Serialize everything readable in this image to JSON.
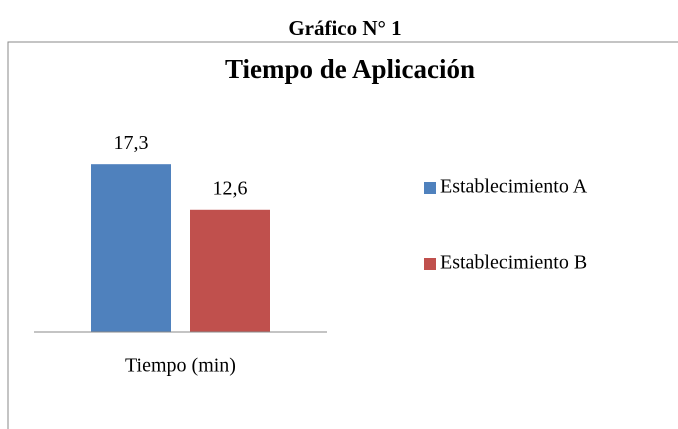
{
  "heading": "Gráfico N° 1",
  "chart_data": {
    "type": "bar",
    "title": "Tiempo de Aplicación",
    "categories": [
      "Tiempo (min)"
    ],
    "series": [
      {
        "name": "Establecimiento A",
        "color": "#4f81bd",
        "values": [
          17.3
        ],
        "value_labels": [
          "17,3"
        ]
      },
      {
        "name": "Establecimiento B",
        "color": "#c0504d",
        "values": [
          12.6
        ],
        "value_labels": [
          "12,6"
        ]
      }
    ],
    "ylim": [
      0,
      20
    ],
    "legend": "right"
  }
}
